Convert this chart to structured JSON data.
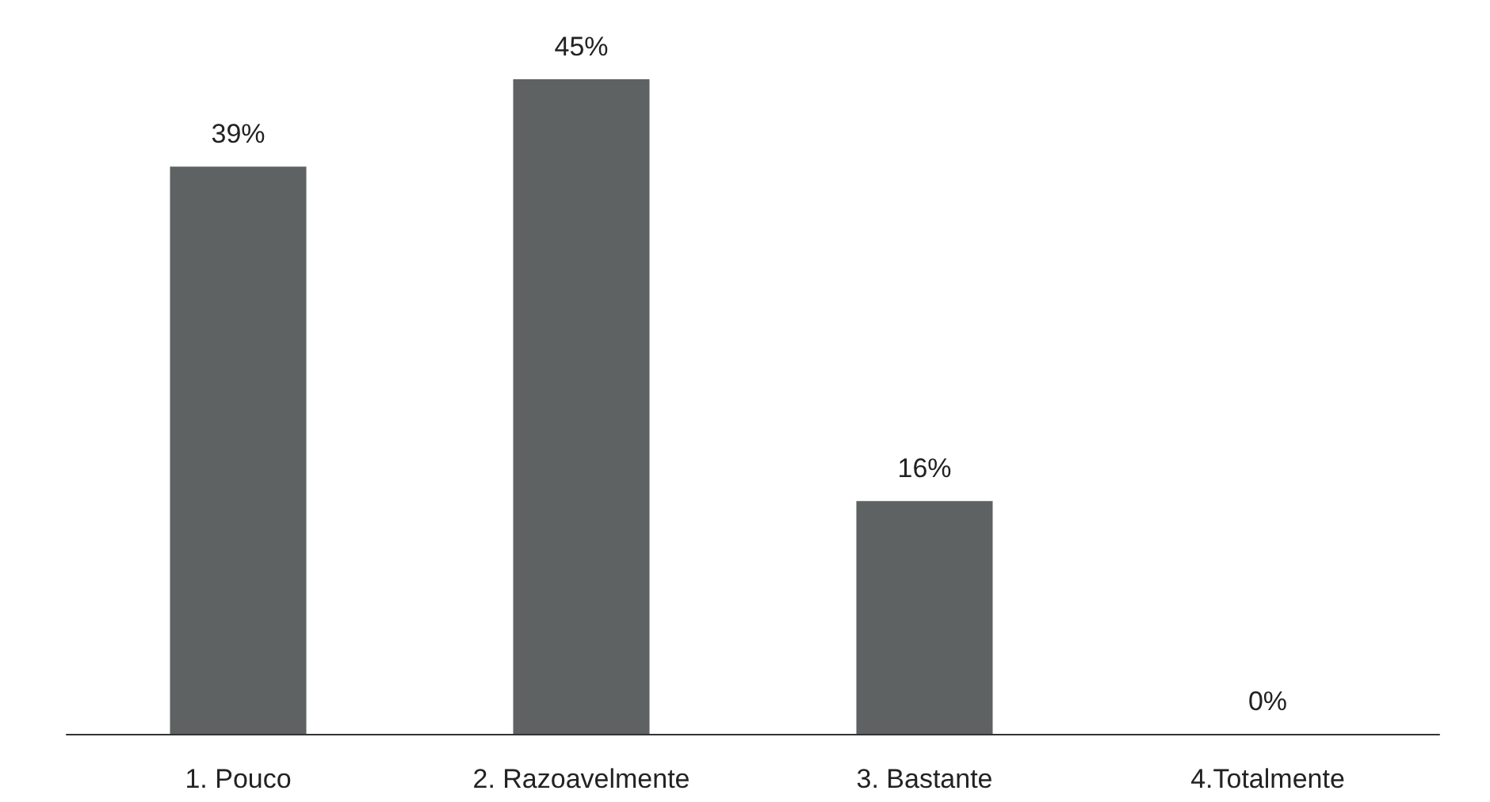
{
  "chart_data": {
    "type": "bar",
    "categories": [
      "1. Pouco",
      "2. Razoavelmente",
      "3. Bastante",
      "4.Totalmente"
    ],
    "values": [
      39,
      45,
      16,
      0
    ],
    "value_labels": [
      "39%",
      "45%",
      "16%",
      "0%"
    ],
    "color": "#5f6262"
  }
}
